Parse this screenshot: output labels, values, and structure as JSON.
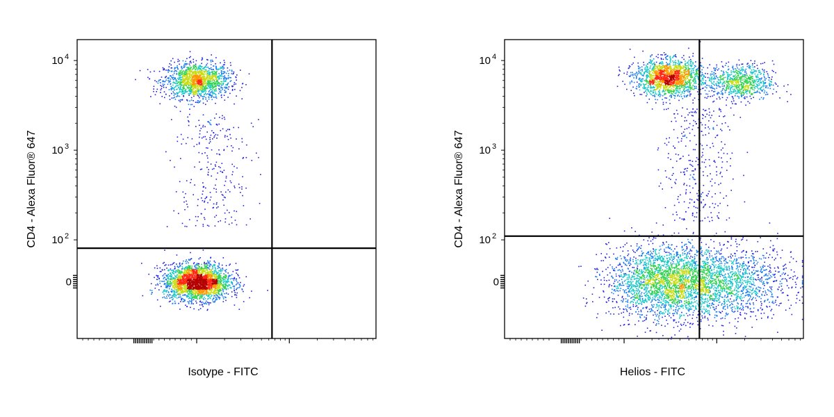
{
  "chart_data": [
    {
      "type": "scatter",
      "subtype": "density-dot-plot",
      "xlabel": "Isotype - FITC",
      "ylabel": "CD4 - Alexa Fluor® 647",
      "y_ticks": [
        {
          "base": "0",
          "exp": "",
          "value": 0
        },
        {
          "base": "10",
          "exp": "2",
          "value": 100
        },
        {
          "base": "10",
          "exp": "3",
          "value": 1000
        },
        {
          "base": "10",
          "exp": "4",
          "value": 10000
        }
      ],
      "x_scale": "biexponential",
      "y_scale": "biexponential",
      "x_ticks_labeled": false,
      "gate": {
        "x_divider": 650,
        "y_divider": 80
      },
      "populations": [
        {
          "name": "",
          "x_center": 100,
          "y_center": 6000,
          "spread": "tight",
          "count": 1500
        },
        {
          "name": "",
          "x_center": 100,
          "y_center": 0,
          "spread": "tight",
          "count": 2600
        },
        {
          "name": "",
          "x_center": 150,
          "y_center": 600,
          "spread": "sparse",
          "count": 260
        }
      ],
      "colormap": [
        "#1e1edc",
        "#1478f0",
        "#14c8c8",
        "#32d250",
        "#c8dc14",
        "#ff9600",
        "#ff2814",
        "#b40000"
      ],
      "grid": false
    },
    {
      "type": "scatter",
      "subtype": "density-dot-plot",
      "xlabel": "Helios - FITC",
      "ylabel": "CD4 - Alexa Fluor® 647",
      "y_ticks": [
        {
          "base": "0",
          "exp": "",
          "value": 0
        },
        {
          "base": "10",
          "exp": "2",
          "value": 100
        },
        {
          "base": "10",
          "exp": "3",
          "value": 1000
        },
        {
          "base": "10",
          "exp": "4",
          "value": 10000
        }
      ],
      "x_scale": "biexponential",
      "y_scale": "biexponential",
      "x_ticks_labeled": false,
      "gate": {
        "x_divider": 650,
        "y_divider": 110
      },
      "populations": [
        {
          "name": "",
          "x_center": 300,
          "y_center": 6500,
          "spread": "tight",
          "count": 1700
        },
        {
          "name": "",
          "x_center": 1800,
          "y_center": 5800,
          "spread": "tight",
          "count": 800
        },
        {
          "name": "",
          "x_center": 300,
          "y_center": 0,
          "spread": "wide",
          "count": 2800
        },
        {
          "name": "",
          "x_center": 1500,
          "y_center": 0,
          "spread": "wide",
          "count": 1200
        },
        {
          "name": "",
          "x_center": 600,
          "y_center": 700,
          "spread": "sparse",
          "count": 330
        }
      ],
      "colormap": [
        "#1e1edc",
        "#1478f0",
        "#14c8c8",
        "#32d250",
        "#c8dc14",
        "#ff9600",
        "#ff2814",
        "#b40000"
      ],
      "grid": false
    }
  ]
}
